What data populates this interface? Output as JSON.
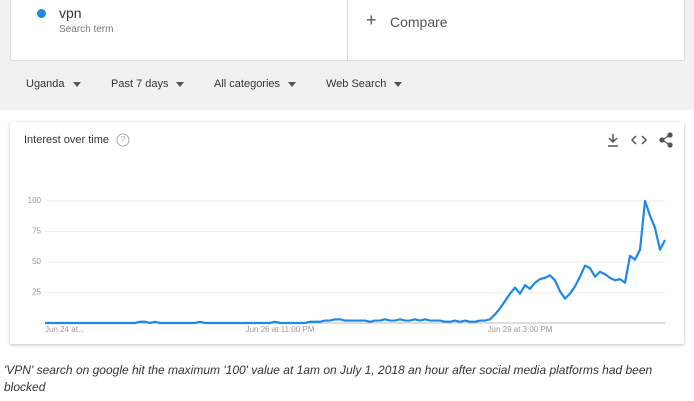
{
  "search": {
    "term": "vpn",
    "subtitle": "Search term",
    "compare": "Compare"
  },
  "filters": [
    "Uganda",
    "Past 7 days",
    "All categories",
    "Web Search"
  ],
  "chart_data": {
    "type": "line",
    "title": "Interest over time",
    "categories": [
      "Jun 24 at...",
      null,
      null,
      null,
      null,
      null,
      null,
      null,
      null,
      null,
      null,
      null,
      null,
      null,
      null,
      null,
      null,
      null,
      null,
      null,
      null,
      null,
      null,
      null,
      null,
      null,
      null,
      null,
      null,
      null,
      null,
      null,
      null,
      null,
      null,
      null,
      null,
      null,
      null,
      null,
      null,
      null,
      null,
      null,
      null,
      null,
      null,
      "Jun 26 at 11:00 PM",
      null,
      null,
      null,
      null,
      null,
      null,
      null,
      null,
      null,
      null,
      null,
      null,
      null,
      null,
      null,
      null,
      null,
      null,
      null,
      null,
      null,
      null,
      null,
      null,
      null,
      null,
      null,
      null,
      null,
      null,
      null,
      null,
      null,
      null,
      null,
      null,
      null,
      null,
      null,
      null,
      null,
      null,
      null,
      null,
      null,
      null,
      null,
      "Jun 29 at 3:00 PM",
      null,
      null,
      null,
      null,
      null,
      null,
      null,
      null,
      null,
      null,
      null,
      null,
      null,
      null,
      null,
      null,
      null,
      null,
      null,
      null,
      null,
      null,
      null,
      null,
      null,
      null,
      null,
      null,
      null
    ],
    "series": [
      {
        "name": "vpn",
        "color": "#1e88e5",
        "values": [
          0,
          0,
          0,
          0,
          0,
          0,
          0,
          0,
          0,
          0,
          0,
          0,
          0,
          0,
          0,
          0,
          0,
          0,
          0,
          1,
          1,
          0,
          1,
          0,
          0,
          0,
          0,
          0,
          0,
          0,
          0,
          1,
          0,
          0,
          0,
          0,
          0,
          0,
          0,
          0,
          0,
          0,
          0,
          0,
          0,
          0,
          1,
          0,
          0,
          0,
          0,
          0,
          0,
          1,
          1,
          1,
          2,
          2,
          3,
          3,
          2,
          2,
          2,
          2,
          2,
          1,
          2,
          2,
          3,
          2,
          2,
          3,
          2,
          2,
          3,
          2,
          3,
          2,
          2,
          2,
          1,
          1,
          2,
          1,
          2,
          1,
          1,
          2,
          2,
          3,
          7,
          12,
          18,
          24,
          29,
          24,
          31,
          28,
          33,
          36,
          37,
          39,
          35,
          26,
          20,
          24,
          30,
          38,
          47,
          45,
          38,
          42,
          40,
          37,
          35,
          36,
          33,
          55,
          52,
          60,
          100,
          88,
          78,
          60,
          68
        ]
      }
    ],
    "ylim": [
      0,
      100
    ],
    "yticks": [
      25,
      50,
      75,
      100
    ],
    "grid": true
  },
  "caption": "'VPN' search on google hit the maximum '100' value at 1am on July 1, 2018 an hour after social media platforms had been blocked"
}
